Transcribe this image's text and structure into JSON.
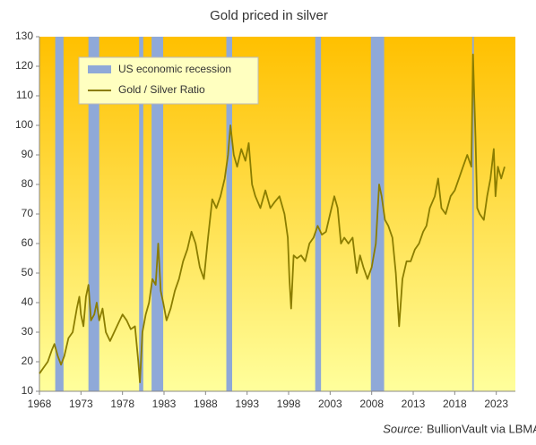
{
  "chart_data": {
    "type": "line",
    "title": "Gold priced in silver",
    "source_label": "Source:",
    "source_text": "BullionVault via LBMA, NBER",
    "recessions": {
      "name": "US economic recession",
      "color": "#8fa9d8",
      "periods": [
        [
          1969.9,
          1970.9
        ],
        [
          1973.9,
          1975.2
        ],
        [
          1980.0,
          1980.5
        ],
        [
          1981.5,
          1982.9
        ],
        [
          1990.5,
          1991.2
        ],
        [
          2001.2,
          2001.9
        ],
        [
          2007.9,
          2009.5
        ],
        [
          2020.1,
          2020.3
        ]
      ]
    },
    "x": [
      1968.0,
      1968.5,
      1969.0,
      1969.5,
      1969.8,
      1970.2,
      1970.6,
      1971.0,
      1971.5,
      1972.0,
      1972.5,
      1972.8,
      1973.0,
      1973.3,
      1973.6,
      1973.9,
      1974.2,
      1974.6,
      1974.9,
      1975.2,
      1975.6,
      1976.0,
      1976.5,
      1977.0,
      1977.5,
      1978.0,
      1978.5,
      1979.0,
      1979.5,
      1979.9,
      1980.1,
      1980.4,
      1980.8,
      1981.2,
      1981.6,
      1982.0,
      1982.3,
      1982.6,
      1982.9,
      1983.3,
      1983.8,
      1984.3,
      1984.8,
      1985.3,
      1985.8,
      1986.3,
      1986.8,
      1987.3,
      1987.8,
      1988.3,
      1988.8,
      1989.3,
      1989.8,
      1990.3,
      1990.7,
      1991.0,
      1991.4,
      1991.8,
      1992.3,
      1992.8,
      1993.2,
      1993.6,
      1994.0,
      1994.6,
      1995.2,
      1995.8,
      1996.3,
      1996.9,
      1997.5,
      1997.9,
      1998.1,
      1998.3,
      1998.6,
      1999.0,
      1999.5,
      2000.0,
      2000.5,
      2001.0,
      2001.5,
      2002.0,
      2002.5,
      2003.0,
      2003.5,
      2003.9,
      2004.3,
      2004.7,
      2005.2,
      2005.7,
      2006.2,
      2006.6,
      2007.0,
      2007.5,
      2008.0,
      2008.5,
      2008.9,
      2009.2,
      2009.6,
      2010.0,
      2010.5,
      2010.9,
      2011.3,
      2011.7,
      2012.2,
      2012.7,
      2013.2,
      2013.7,
      2014.2,
      2014.6,
      2015.0,
      2015.6,
      2016.0,
      2016.4,
      2016.9,
      2017.5,
      2018.0,
      2018.5,
      2019.0,
      2019.5,
      2020.0,
      2020.2,
      2020.5,
      2020.7,
      2021.0,
      2021.5,
      2021.9,
      2022.3,
      2022.7,
      2022.9,
      2023.2,
      2023.6,
      2024.0
    ],
    "series": [
      {
        "name": "Gold / Silver Ratio",
        "color": "#8b7d00",
        "values": [
          16,
          18,
          20,
          24,
          26,
          22,
          19,
          22,
          28,
          30,
          38,
          42,
          36,
          32,
          42,
          46,
          34,
          36,
          40,
          34,
          38,
          30,
          27,
          30,
          33,
          36,
          34,
          31,
          32,
          20,
          13,
          30,
          36,
          40,
          48,
          46,
          60,
          44,
          40,
          34,
          38,
          44,
          48,
          54,
          58,
          64,
          60,
          52,
          48,
          62,
          75,
          72,
          76,
          82,
          90,
          100,
          90,
          86,
          92,
          88,
          94,
          80,
          76,
          72,
          78,
          72,
          74,
          76,
          70,
          62,
          48,
          38,
          56,
          55,
          56,
          54,
          60,
          62,
          66,
          63,
          64,
          70,
          76,
          72,
          60,
          62,
          60,
          62,
          50,
          56,
          52,
          48,
          52,
          60,
          80,
          76,
          68,
          66,
          62,
          50,
          32,
          48,
          54,
          54,
          58,
          60,
          64,
          66,
          72,
          76,
          82,
          72,
          70,
          76,
          78,
          82,
          86,
          90,
          86,
          124,
          96,
          72,
          70,
          68,
          76,
          82,
          92,
          76,
          86,
          82,
          86
        ]
      }
    ],
    "xlim": [
      1968,
      2025.3
    ],
    "ylim": [
      10,
      130
    ],
    "xticks": [
      1968,
      1973,
      1978,
      1983,
      1988,
      1993,
      1998,
      2003,
      2008,
      2013,
      2018,
      2023
    ],
    "yticks": [
      10,
      20,
      30,
      40,
      50,
      60,
      70,
      80,
      90,
      100,
      110,
      120,
      130
    ],
    "legend": "upper-left"
  }
}
